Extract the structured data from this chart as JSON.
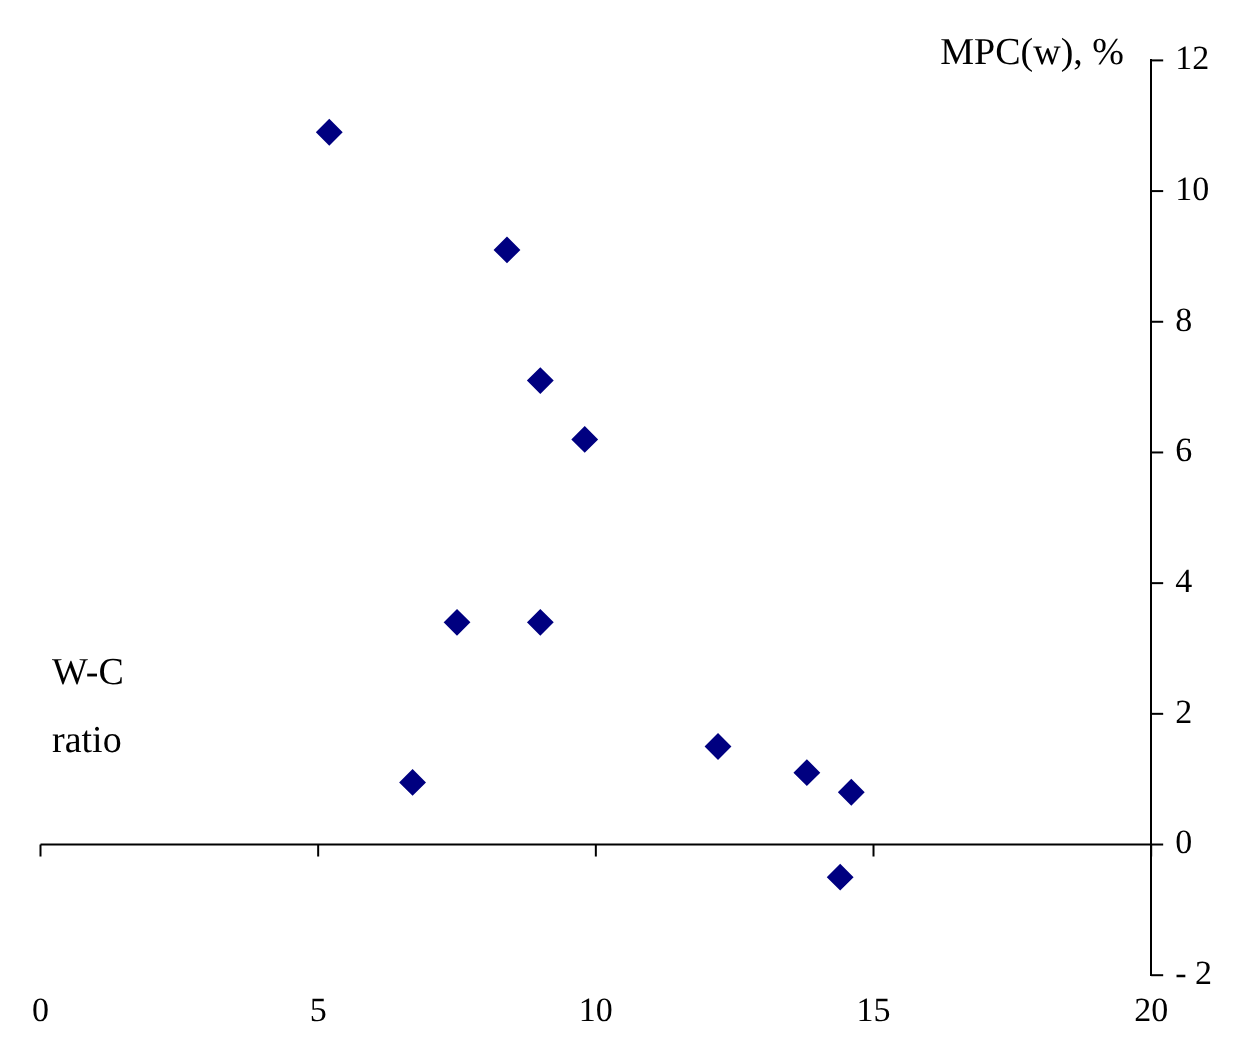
{
  "chart_data": {
    "type": "scatter",
    "xlabel": "W-C ratio",
    "ylabel": "MPC(w), %",
    "x": [
      5.2,
      8.4,
      9.0,
      9.8,
      7.5,
      9.0,
      6.7,
      12.2,
      13.8,
      14.6,
      14.4
    ],
    "values": [
      10.9,
      9.1,
      7.1,
      6.2,
      3.4,
      3.4,
      0.95,
      1.5,
      1.1,
      0.8,
      -0.5
    ],
    "color": "#000080",
    "marker": "diamond",
    "xlim": [
      0,
      20
    ],
    "xticks": [
      0,
      5,
      10,
      15,
      20
    ],
    "ylim": [
      -2,
      12
    ],
    "yticks": [
      -2,
      0,
      2,
      4,
      6,
      8,
      10,
      12
    ],
    "grid": false,
    "legend": false,
    "ref_lines": [
      {
        "axis": "y",
        "value": 0,
        "color": "#000000"
      }
    ]
  }
}
